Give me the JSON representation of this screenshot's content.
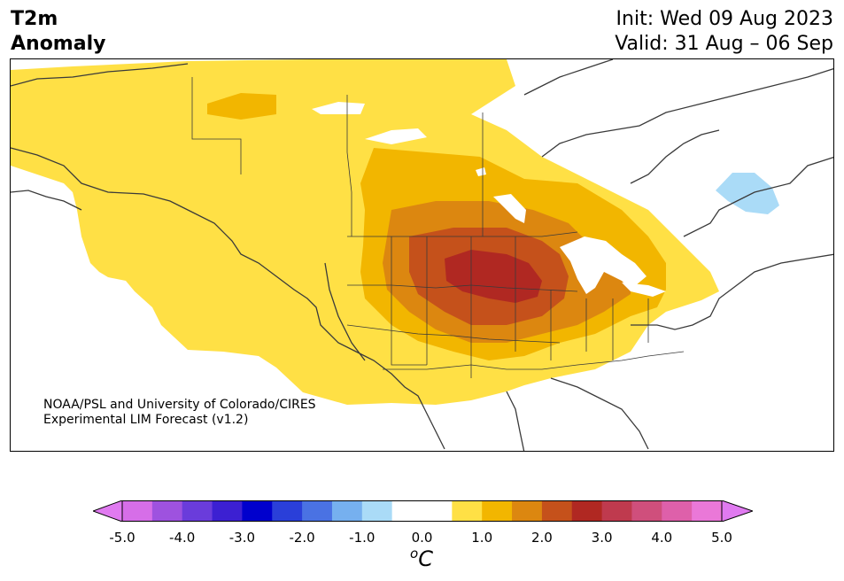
{
  "title": {
    "line1": "T2m",
    "line2": "Anomaly"
  },
  "dates": {
    "init": "Init: Wed 09 Aug 2023",
    "valid": "Valid: 31 Aug – 06 Sep"
  },
  "credit": {
    "line1": "NOAA/PSL and University of Colorado/CIRES",
    "line2": "Experimental LIM Forecast (v1.2)"
  },
  "colorbar": {
    "unit_sup": "o",
    "unit": "C",
    "ticks": [
      "-5.0",
      "-4.0",
      "-3.0",
      "-2.0",
      "-1.0",
      "0.0",
      "1.0",
      "2.0",
      "3.0",
      "4.0",
      "5.0"
    ],
    "colors": [
      "#d66ee8",
      "#9e52df",
      "#6a3cdb",
      "#3c20d2",
      "#0000cd",
      "#2a3fd9",
      "#4a72e3",
      "#76b0ef",
      "#aadbf7",
      "#ffffff",
      "#ffffff",
      "#ffe045",
      "#f2b600",
      "#dc8710",
      "#c5511b",
      "#b02822",
      "#bf3a4e",
      "#cf4f7c",
      "#de60aa",
      "#ea78d8"
    ],
    "under_color": "#e07af0",
    "over_color": "#e07af0"
  },
  "map_colors": {
    "a1": "#ffe045",
    "a2": "#f2b600",
    "a3": "#dc8710",
    "a4": "#c5511b",
    "a5": "#b02822",
    "cool": "#aadbf7",
    "coast": "#3a3a3a"
  }
}
